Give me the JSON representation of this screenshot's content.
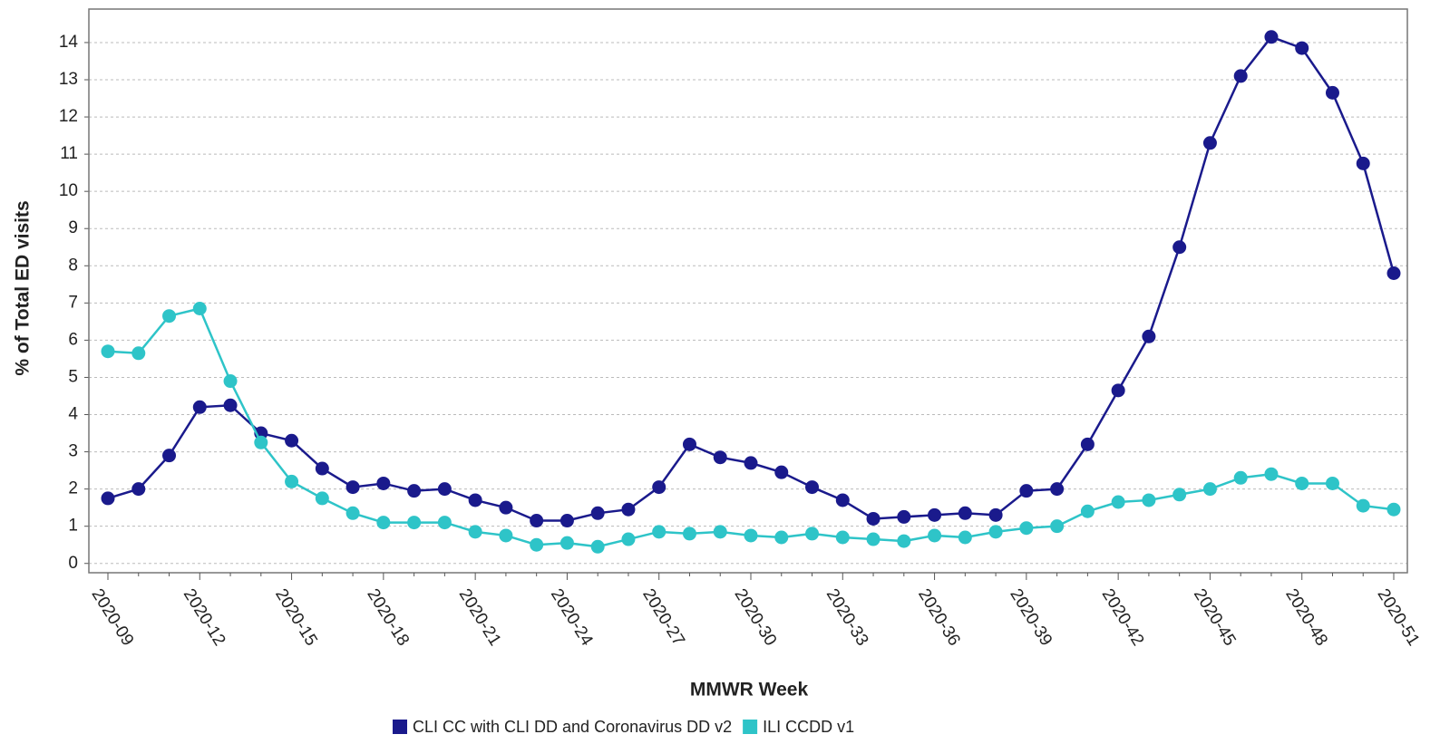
{
  "chart_data": {
    "type": "line",
    "y_label": "% of Total ED visits",
    "x_label": "MMWR Week",
    "categories": [
      "2020-09",
      null,
      null,
      "2020-12",
      null,
      null,
      "2020-15",
      null,
      null,
      "2020-18",
      null,
      null,
      "2020-21",
      null,
      null,
      "2020-24",
      null,
      null,
      "2020-27",
      null,
      null,
      "2020-30",
      null,
      null,
      "2020-33",
      null,
      null,
      "2020-36",
      null,
      null,
      "2020-39",
      null,
      null,
      "2020-42",
      null,
      null,
      "2020-45",
      null,
      null,
      "2020-48",
      null,
      null,
      "2020-51"
    ],
    "series": [
      {
        "name": "CLI CC with CLI DD and Coronavirus DD v2",
        "color": "#1a1a8c",
        "values": [
          1.75,
          2.0,
          2.9,
          4.2,
          4.25,
          3.5,
          3.3,
          2.55,
          2.05,
          2.15,
          1.95,
          2.0,
          1.7,
          1.5,
          1.15,
          1.15,
          1.35,
          1.45,
          2.05,
          3.2,
          2.85,
          2.7,
          2.45,
          2.05,
          1.7,
          1.2,
          1.25,
          1.3,
          1.35,
          1.3,
          1.95,
          2.0,
          3.2,
          4.65,
          6.1,
          8.5,
          11.3,
          13.1,
          14.15,
          13.85,
          12.65,
          10.75,
          7.8
        ]
      },
      {
        "name": "ILI CCDD v1",
        "color": "#2ec4c8",
        "values": [
          5.7,
          5.65,
          6.65,
          6.85,
          4.9,
          3.25,
          2.2,
          1.75,
          1.35,
          1.1,
          1.1,
          1.1,
          0.85,
          0.75,
          0.5,
          0.55,
          0.45,
          0.65,
          0.85,
          0.8,
          0.85,
          0.75,
          0.7,
          0.8,
          0.7,
          0.65,
          0.6,
          0.75,
          0.7,
          0.85,
          0.95,
          1.0,
          1.4,
          1.65,
          1.7,
          1.85,
          2.0,
          2.3,
          2.4,
          2.15,
          2.15,
          1.55,
          1.45
        ]
      }
    ],
    "ylim": [
      -0.25,
      14.9
    ],
    "yticks": [
      0,
      1,
      2,
      3,
      4,
      5,
      6,
      7,
      8,
      9,
      10,
      11,
      12,
      13,
      14
    ],
    "grid": true
  }
}
